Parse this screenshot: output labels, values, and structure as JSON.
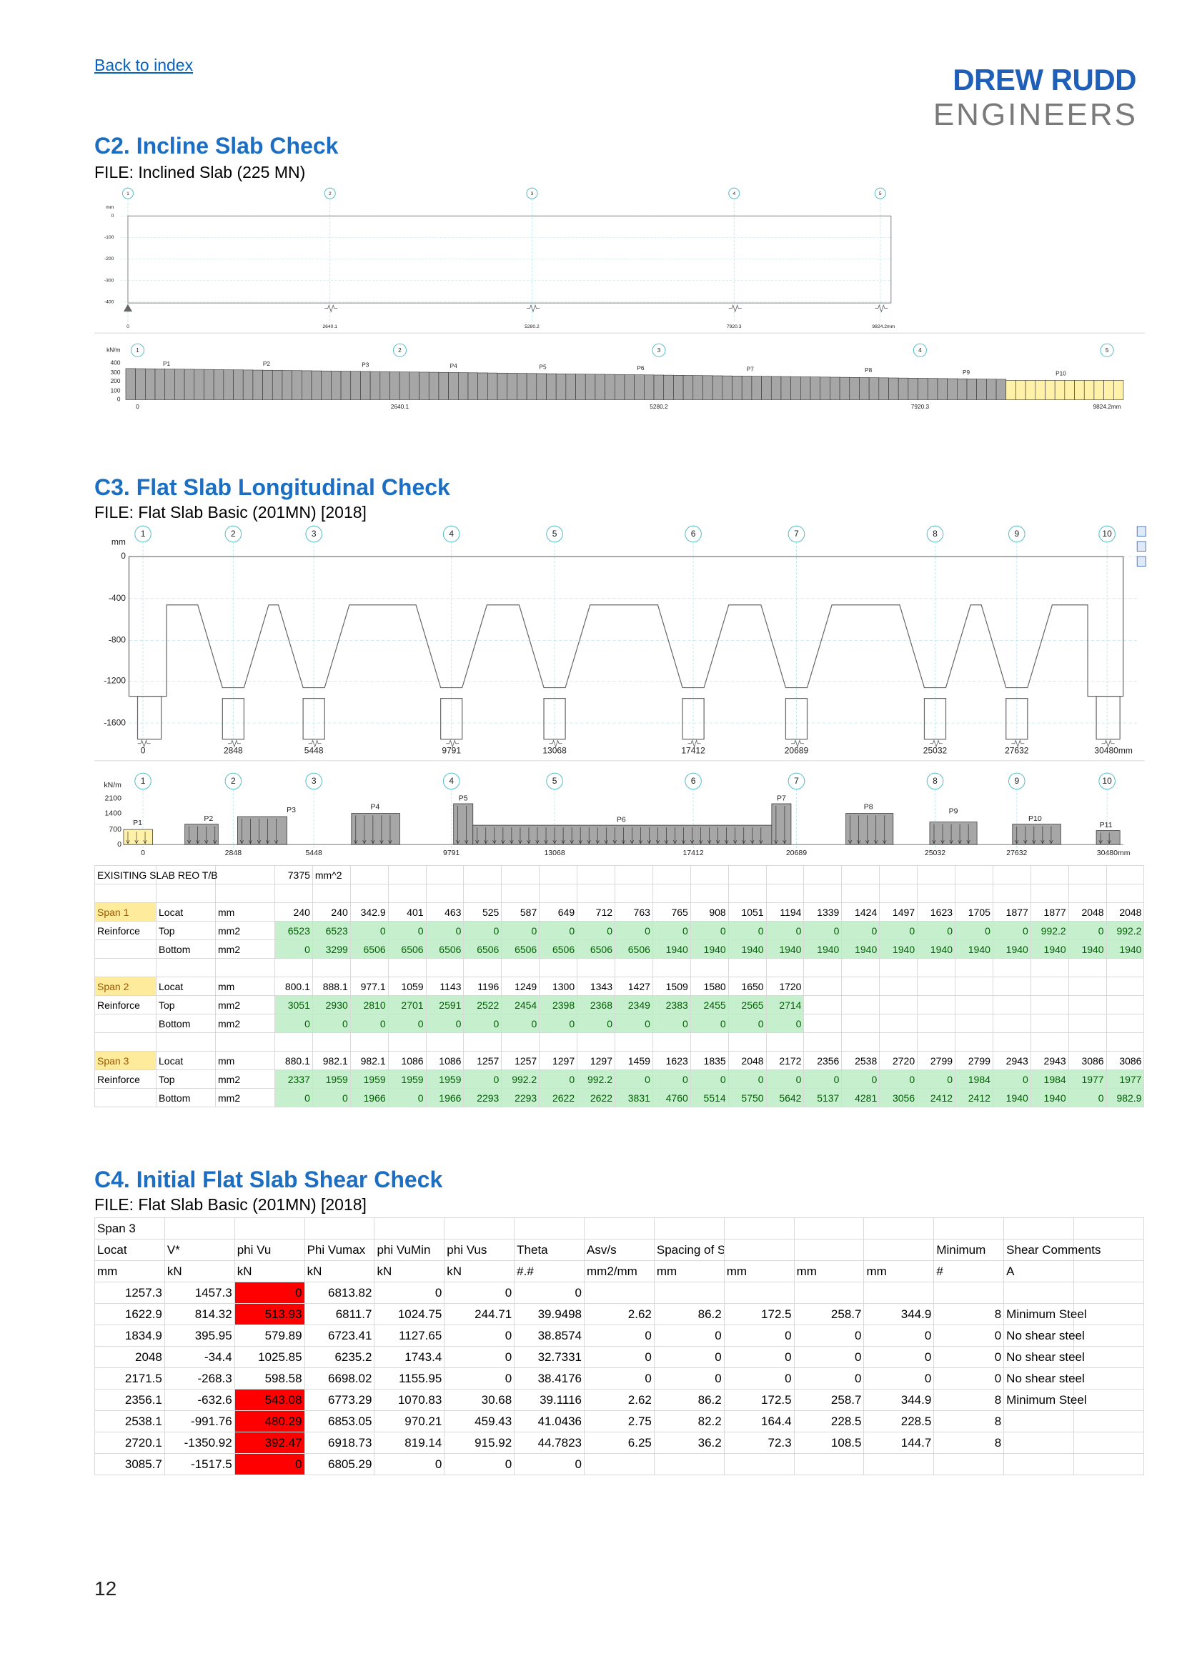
{
  "header": {
    "back_link": "Back to index",
    "logo_line1": "DREW RUDD",
    "logo_line2": "ENGINEERS"
  },
  "sections": [
    {
      "title": "C2. Incline Slab Check",
      "file": "FILE: Inclined Slab (225 MN)",
      "diagrams": [
        {
          "grid_labels": [
            "1",
            "2",
            "3",
            "4",
            "5"
          ],
          "y_labels": [
            "mm",
            "0",
            "-100",
            "-200",
            "-300",
            "-400"
          ],
          "x_labels": [
            "0",
            "2640.1",
            "5280.2",
            "7920.3",
            "9824.2mm"
          ]
        },
        {
          "grid_labels": [
            "1",
            "2",
            "3",
            "4",
            "5"
          ],
          "y_labels": [
            "kN/m",
            "400",
            "300",
            "200",
            "100",
            "0"
          ],
          "load_labels": [
            "P1",
            "P2",
            "P3",
            "P4",
            "P5",
            "P6",
            "P7",
            "P8",
            "P9",
            "P10"
          ],
          "x_labels": [
            "0",
            "2640.1",
            "5280.2",
            "7920.3",
            "9824.2mm"
          ]
        }
      ]
    },
    {
      "title": "C3. Flat Slab Longitudinal Check",
      "file": "FILE: Flat Slab Basic (201MN) [2018]",
      "diagrams": [
        {
          "grid_labels": [
            "1",
            "2",
            "3",
            "4",
            "5",
            "6",
            "7",
            "8",
            "9",
            "10"
          ],
          "y_labels": [
            "mm",
            "0",
            "-400",
            "-800",
            "-1200",
            "-1600"
          ],
          "x_labels": [
            "0",
            "2848",
            "5448",
            "9791",
            "13068",
            "17412",
            "20689",
            "25032",
            "27632",
            "30480mm"
          ]
        },
        {
          "grid_labels": [
            "1",
            "2",
            "3",
            "4",
            "5",
            "6",
            "7",
            "8",
            "9",
            "10"
          ],
          "y_labels": [
            "kN/m",
            "2100",
            "1400",
            "700",
            "0"
          ],
          "load_labels": [
            "P1",
            "P2",
            "P3",
            "P4",
            "P5",
            "P6",
            "P7",
            "P8",
            "P9",
            "P10",
            "P11"
          ],
          "x_labels": [
            "0",
            "2848",
            "5448",
            "9791",
            "13068",
            "17412",
            "20689",
            "25032",
            "27632",
            "30480mm"
          ]
        }
      ],
      "table": {
        "note": [
          "EXISITING SLAB REO T/B",
          7375,
          "mm^2"
        ],
        "spans": [
          {
            "rows": [
              [
                "Span 1",
                "Locat",
                "mm"
              ],
              [
                "Reinforce",
                "Top",
                "mm2"
              ],
              [
                null,
                "Bottom",
                "mm2"
              ]
            ],
            "values": [
              [
                240,
                240,
                342.9,
                401,
                463,
                525,
                587,
                649,
                712,
                763,
                765,
                908,
                1051,
                1194,
                1339,
                1424,
                1497,
                1623,
                1705,
                1877,
                1877,
                2048,
                2048
              ],
              [
                6523,
                6523,
                0,
                0,
                0,
                0,
                0,
                0,
                0,
                0,
                0,
                0,
                0,
                0,
                0,
                0,
                0,
                0,
                0,
                0,
                992.2,
                0,
                992.2
              ],
              [
                0,
                3299,
                6506,
                6506,
                6506,
                6506,
                6506,
                6506,
                6506,
                6506,
                1940,
                1940,
                1940,
                1940,
                1940,
                1940,
                1940,
                1940,
                1940,
                1940,
                1940,
                1940,
                1940
              ]
            ]
          },
          {
            "rows": [
              [
                "Span 2",
                "Locat",
                "mm"
              ],
              [
                "Reinforce",
                "Top",
                "mm2"
              ],
              [
                null,
                "Bottom",
                "mm2"
              ]
            ],
            "values": [
              [
                800.1,
                888.1,
                977.1,
                1059,
                1143,
                1196,
                1249,
                1300,
                1343,
                1427,
                1509,
                1580,
                1650,
                1720
              ],
              [
                3051,
                2930,
                2810,
                2701,
                2591,
                2522,
                2454,
                2398,
                2368,
                2349,
                2383,
                2455,
                2565,
                2714
              ],
              [
                0,
                0,
                0,
                0,
                0,
                0,
                0,
                0,
                0,
                0,
                0,
                0,
                0,
                0
              ]
            ]
          },
          {
            "rows": [
              [
                "Span 3",
                "Locat",
                "mm"
              ],
              [
                "Reinforce",
                "Top",
                "mm2"
              ],
              [
                null,
                "Bottom",
                "mm2"
              ]
            ],
            "values": [
              [
                880.1,
                982.1,
                982.1,
                1086,
                1086,
                1257,
                1257,
                1297,
                1297,
                1459,
                1623,
                1835,
                2048,
                2172,
                2356,
                2538,
                2720,
                2799,
                2799,
                2943,
                2943,
                3086,
                3086
              ],
              [
                2337,
                1959,
                1959,
                1959,
                1959,
                0,
                992.2,
                0,
                992.2,
                0,
                0,
                0,
                0,
                0,
                0,
                0,
                0,
                0,
                1984,
                0,
                1984,
                1977,
                1977
              ],
              [
                0,
                0,
                1966,
                0,
                1966,
                2293,
                2293,
                2622,
                2622,
                3831,
                4760,
                5514,
                5750,
                5642,
                5137,
                4281,
                3056,
                2412,
                2412,
                1940,
                1940,
                0,
                982.9
              ]
            ]
          }
        ]
      }
    },
    {
      "title": "C4. Initial Flat Slab Shear Check",
      "file": "FILE: Flat Slab Basic (201MN) [2018]",
      "table": {
        "title_row": "Span 3",
        "header": [
          "Locat",
          "V*",
          "phi Vu",
          "Phi Vumax",
          "phi VuMin",
          "phi Vus",
          "Theta",
          "Asv/s",
          "Spacing of Sets",
          null,
          null,
          null,
          "Minimum",
          "Shear Comments"
        ],
        "units": [
          "mm",
          "kN",
          "kN",
          "kN",
          "kN",
          "kN",
          "#.#",
          "mm2/mm",
          "mm",
          "mm",
          "mm",
          "mm",
          "#",
          "A"
        ],
        "rows": [
          [
            1257.3,
            1457.3,
            0,
            6813.82,
            0,
            0,
            0,
            null,
            null,
            null,
            null,
            null,
            null,
            null
          ],
          [
            1622.9,
            814.32,
            513.93,
            6811.7,
            1024.75,
            244.71,
            39.9498,
            2.62,
            86.2,
            172.5,
            258.7,
            344.9,
            8,
            "Minimum Steel"
          ],
          [
            1834.9,
            395.95,
            579.89,
            6723.41,
            1127.65,
            0,
            38.8574,
            0,
            0,
            0,
            0,
            0,
            0,
            "No shear steel"
          ],
          [
            2048,
            -34.4,
            1025.85,
            6235.2,
            1743.4,
            0,
            32.7331,
            0,
            0,
            0,
            0,
            0,
            0,
            "No shear steel"
          ],
          [
            2171.5,
            -268.3,
            598.58,
            6698.02,
            1155.95,
            0,
            38.4176,
            0,
            0,
            0,
            0,
            0,
            0,
            "No shear steel"
          ],
          [
            2356.1,
            -632.6,
            543.08,
            6773.29,
            1070.83,
            30.68,
            39.1116,
            2.62,
            86.2,
            172.5,
            258.7,
            344.9,
            8,
            "Minimum Steel"
          ],
          [
            2538.1,
            -991.76,
            480.29,
            6853.05,
            970.21,
            459.43,
            41.0436,
            2.75,
            82.2,
            164.4,
            228.5,
            228.5,
            8,
            null
          ],
          [
            2720.1,
            -1350.92,
            392.47,
            6918.73,
            819.14,
            915.92,
            44.7823,
            6.25,
            36.2,
            72.3,
            108.5,
            144.7,
            8,
            null
          ],
          [
            3085.7,
            -1517.5,
            0,
            6805.29,
            0,
            0,
            0,
            null,
            null,
            null,
            null,
            null,
            null,
            null
          ]
        ],
        "highlight_column": 2,
        "highlight_rows": [
          0,
          1,
          5,
          6,
          7,
          8
        ],
        "highlight_color": "#ff0000"
      }
    }
  ],
  "page_number": 12
}
